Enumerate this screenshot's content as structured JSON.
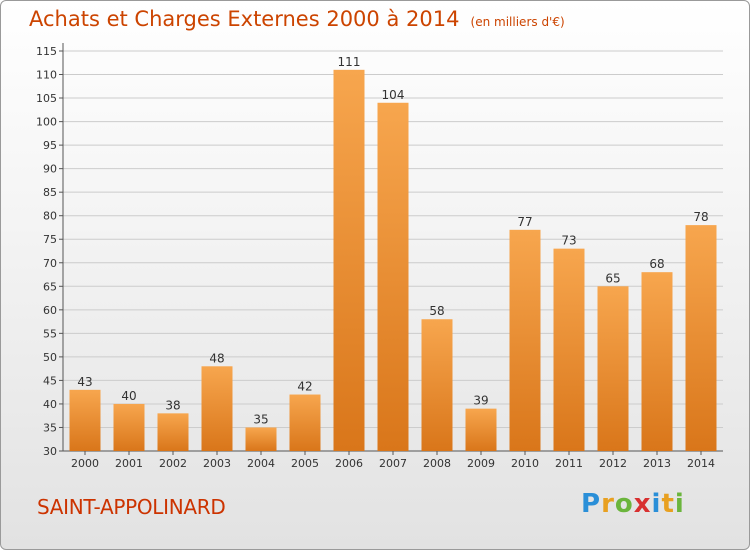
{
  "header": {
    "title": "Achats et Charges Externes 2000 à 2014",
    "subtitle": "(en milliers d'€)"
  },
  "footer": {
    "commune": "SAINT-APPOLINARD",
    "brand": "Proxiti",
    "brand_letters": [
      {
        "char": "P",
        "color": "#2a8fd8"
      },
      {
        "char": "r",
        "color": "#e8a020"
      },
      {
        "char": "o",
        "color": "#6bb53c"
      },
      {
        "char": "x",
        "color": "#d83030"
      },
      {
        "char": "i",
        "color": "#2a8fd8"
      },
      {
        "char": "t",
        "color": "#e8a020"
      },
      {
        "char": "i",
        "color": "#6bb53c"
      }
    ]
  },
  "colors": {
    "title": "#cc4400",
    "bar_light": "#f7a64e",
    "bar_dark": "#d9761a",
    "grid": "#cccccc"
  },
  "chart_data": {
    "type": "bar",
    "categories": [
      "2000",
      "2001",
      "2002",
      "2003",
      "2004",
      "2005",
      "2006",
      "2007",
      "2008",
      "2009",
      "2010",
      "2011",
      "2012",
      "2013",
      "2014"
    ],
    "values": [
      43,
      40,
      38,
      48,
      35,
      42,
      111,
      104,
      58,
      39,
      77,
      73,
      65,
      68,
      78
    ],
    "ylim": [
      30,
      115
    ],
    "yticks": [
      30,
      35,
      40,
      45,
      50,
      55,
      60,
      65,
      70,
      75,
      80,
      85,
      90,
      95,
      100,
      105,
      110,
      115
    ],
    "grid": true,
    "title": "Achats et Charges Externes 2000 à 2014",
    "xlabel": "",
    "ylabel": ""
  }
}
